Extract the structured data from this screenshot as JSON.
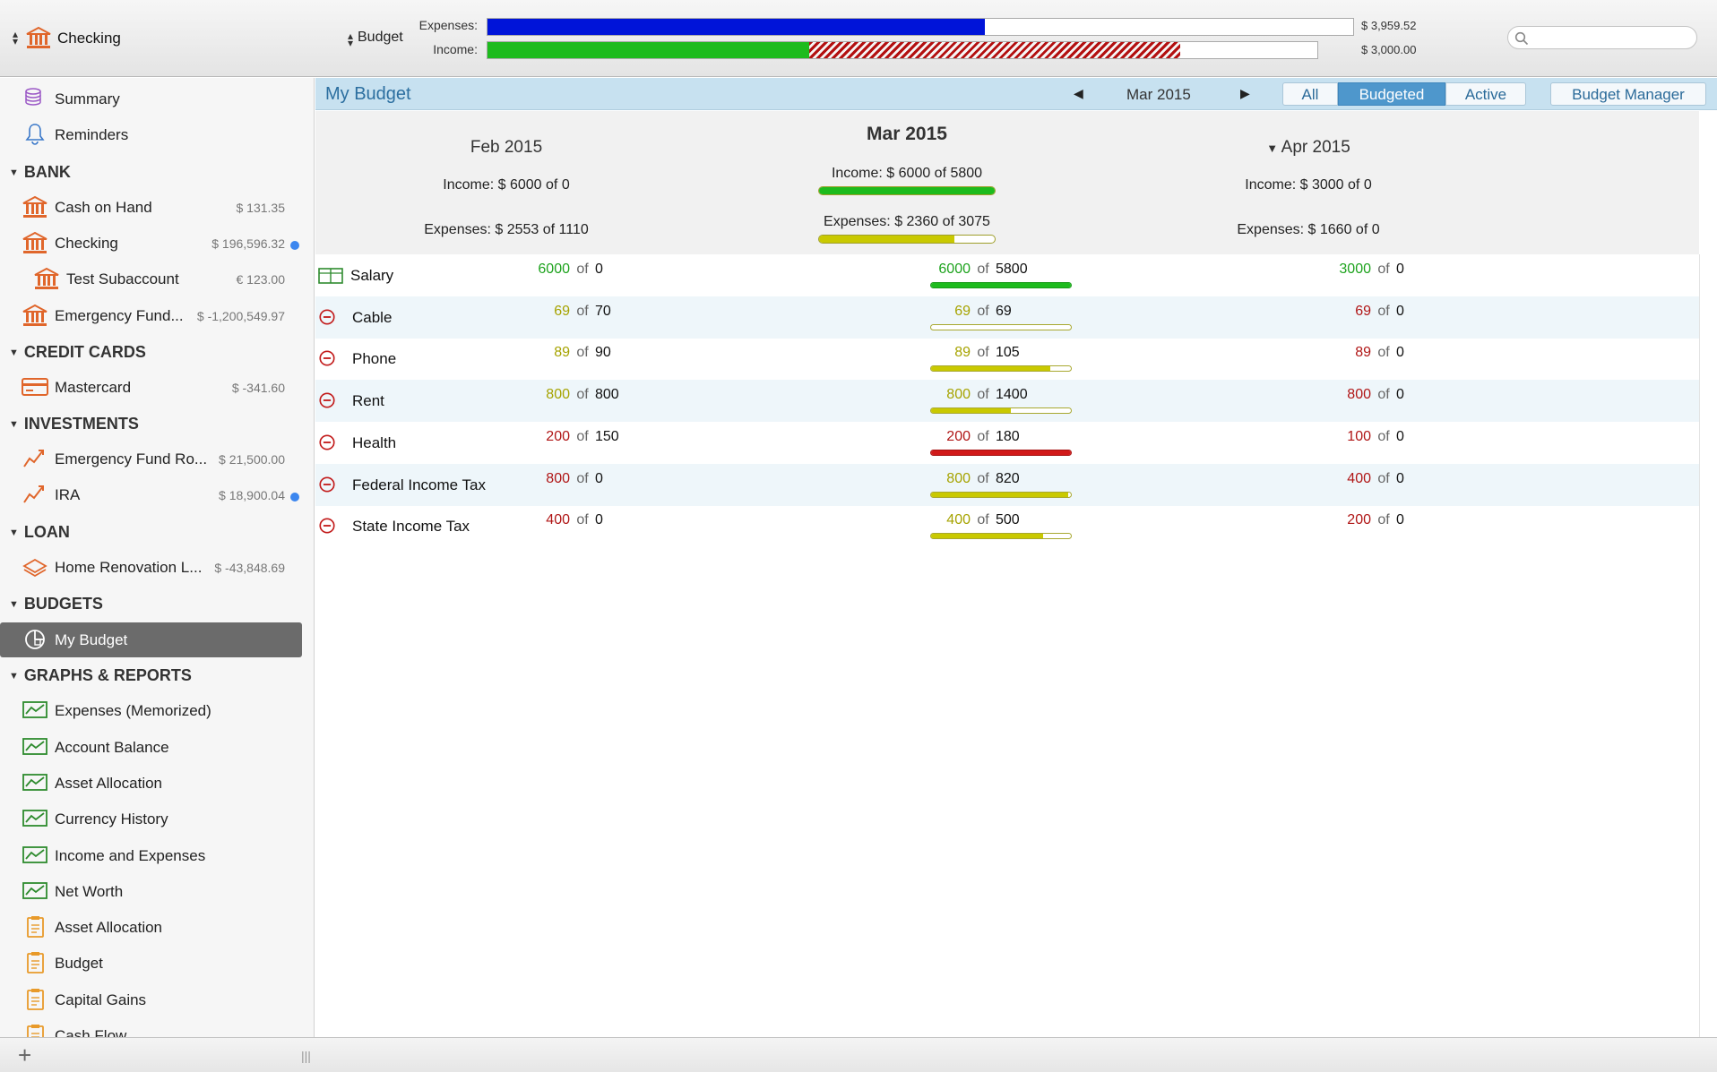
{
  "toolbar": {
    "account": "Checking",
    "budget": "Budget",
    "expenses_caption": "Expenses:",
    "income_caption": "Income:",
    "expenses_amount": "$ 3,959.52",
    "income_amount": "$ 3,000.00",
    "expenses_fraction": 0.575,
    "income_fraction": 0.372,
    "income_overage_fraction": 0.428,
    "search_placeholder": ""
  },
  "sidebar": {
    "top": [
      {
        "label": "Summary",
        "icon": "coins-icon"
      },
      {
        "label": "Reminders",
        "icon": "bell-icon"
      }
    ],
    "sections": [
      {
        "title": "BANK",
        "items": [
          {
            "label": "Cash on Hand",
            "amount": "$ 131.35",
            "icon": "bank-icon",
            "dot": false,
            "indent": false
          },
          {
            "label": "Checking",
            "amount": "$ 196,596.32",
            "icon": "bank-icon",
            "dot": true,
            "indent": false
          },
          {
            "label": "Test Subaccount",
            "amount": "€ 123.00",
            "icon": "bank-icon",
            "dot": false,
            "indent": true
          },
          {
            "label": "Emergency Fund...",
            "amount": "$ -1,200,549.97",
            "icon": "bank-icon",
            "dot": false,
            "indent": false
          }
        ]
      },
      {
        "title": "CREDIT CARDS",
        "items": [
          {
            "label": "Mastercard",
            "amount": "$ -341.60",
            "icon": "credit-card-icon",
            "dot": false,
            "indent": false
          }
        ]
      },
      {
        "title": "INVESTMENTS",
        "items": [
          {
            "label": "Emergency Fund Ro...",
            "amount": "$ 21,500.00",
            "icon": "investment-icon",
            "dot": false,
            "indent": false
          },
          {
            "label": "IRA",
            "amount": "$ 18,900.04",
            "icon": "investment-icon",
            "dot": true,
            "indent": false
          }
        ]
      },
      {
        "title": "LOAN",
        "items": [
          {
            "label": "Home Renovation L...",
            "amount": "$ -43,848.69",
            "icon": "loan-icon",
            "dot": false,
            "indent": false
          }
        ]
      },
      {
        "title": "BUDGETS",
        "items": [
          {
            "label": "My Budget",
            "amount": "",
            "icon": "budget-icon",
            "dot": false,
            "indent": false,
            "selected": true
          }
        ]
      },
      {
        "title": "GRAPHS & REPORTS",
        "items": [
          {
            "label": "Expenses (Memorized)",
            "icon": "graph-icon"
          },
          {
            "label": "Account Balance",
            "icon": "graph-icon"
          },
          {
            "label": "Asset Allocation",
            "icon": "graph-icon"
          },
          {
            "label": "Currency History",
            "icon": "graph-icon"
          },
          {
            "label": "Income and Expenses",
            "icon": "graph-icon"
          },
          {
            "label": "Net Worth",
            "icon": "graph-icon"
          },
          {
            "label": "Asset Allocation",
            "icon": "report-icon"
          },
          {
            "label": "Budget",
            "icon": "report-icon"
          },
          {
            "label": "Capital Gains",
            "icon": "report-icon"
          },
          {
            "label": "Cash Flow",
            "icon": "report-icon"
          }
        ]
      }
    ]
  },
  "main": {
    "title": "My Budget",
    "current_month": "Mar 2015",
    "filters": {
      "all": "All",
      "budgeted": "Budgeted",
      "active": "Active",
      "selected": "Budgeted"
    },
    "budget_manager": "Budget Manager",
    "periods": [
      {
        "title": "Feb 2015",
        "income": "Income: $ 6000 of 0",
        "expenses": "Expenses: $ 2553 of 1110",
        "current": false,
        "expandable": false
      },
      {
        "title": "Mar 2015",
        "income": "Income: $ 6000 of 5800",
        "expenses": "Expenses: $ 2360 of 3075",
        "current": true,
        "expandable": false,
        "income_progress": 1.0,
        "expenses_progress": 0.77
      },
      {
        "title": "Apr 2015",
        "income": "Income: $ 3000 of 0",
        "expenses": "Expenses: $ 1660 of 0",
        "current": false,
        "expandable": true
      }
    ],
    "of_label": "of",
    "rows": [
      {
        "label": "Salary",
        "type": "income",
        "cells": [
          {
            "actual": "6000",
            "budget": "0",
            "color": "green"
          },
          {
            "actual": "6000",
            "budget": "5800",
            "color": "green",
            "progress": 1.0,
            "bar": "green"
          },
          {
            "actual": "3000",
            "budget": "0",
            "color": "green"
          }
        ]
      },
      {
        "label": "Cable",
        "type": "expense",
        "cells": [
          {
            "actual": "69",
            "budget": "70",
            "color": "olive"
          },
          {
            "actual": "69",
            "budget": "69",
            "color": "olive",
            "progress": 1.0,
            "bar": "empty"
          },
          {
            "actual": "69",
            "budget": "0",
            "color": "red"
          }
        ]
      },
      {
        "label": "Phone",
        "type": "expense",
        "cells": [
          {
            "actual": "89",
            "budget": "90",
            "color": "olive"
          },
          {
            "actual": "89",
            "budget": "105",
            "color": "olive",
            "progress": 0.85,
            "bar": "yellow"
          },
          {
            "actual": "89",
            "budget": "0",
            "color": "red"
          }
        ]
      },
      {
        "label": "Rent",
        "type": "expense",
        "cells": [
          {
            "actual": "800",
            "budget": "800",
            "color": "olive"
          },
          {
            "actual": "800",
            "budget": "1400",
            "color": "olive",
            "progress": 0.57,
            "bar": "yellow"
          },
          {
            "actual": "800",
            "budget": "0",
            "color": "red"
          }
        ]
      },
      {
        "label": "Health",
        "type": "expense",
        "cells": [
          {
            "actual": "200",
            "budget": "150",
            "color": "red"
          },
          {
            "actual": "200",
            "budget": "180",
            "color": "red",
            "progress": 1.0,
            "bar": "red"
          },
          {
            "actual": "100",
            "budget": "0",
            "color": "red"
          }
        ]
      },
      {
        "label": "Federal Income Tax",
        "type": "expense",
        "cells": [
          {
            "actual": "800",
            "budget": "0",
            "color": "red"
          },
          {
            "actual": "800",
            "budget": "820",
            "color": "olive",
            "progress": 0.98,
            "bar": "yellow"
          },
          {
            "actual": "400",
            "budget": "0",
            "color": "red"
          }
        ]
      },
      {
        "label": "State Income Tax",
        "type": "expense",
        "cells": [
          {
            "actual": "400",
            "budget": "0",
            "color": "red"
          },
          {
            "actual": "400",
            "budget": "500",
            "color": "olive",
            "progress": 0.8,
            "bar": "yellow"
          },
          {
            "actual": "200",
            "budget": "0",
            "color": "red"
          }
        ]
      }
    ]
  },
  "colors": {
    "green": "#1ea31e",
    "olive": "#a6a300",
    "red": "#b01616",
    "bar_yellow": "#c9c900",
    "bar_green": "#1dbb1d",
    "bar_red": "#d11a1a",
    "accent": "#4e97cc"
  }
}
